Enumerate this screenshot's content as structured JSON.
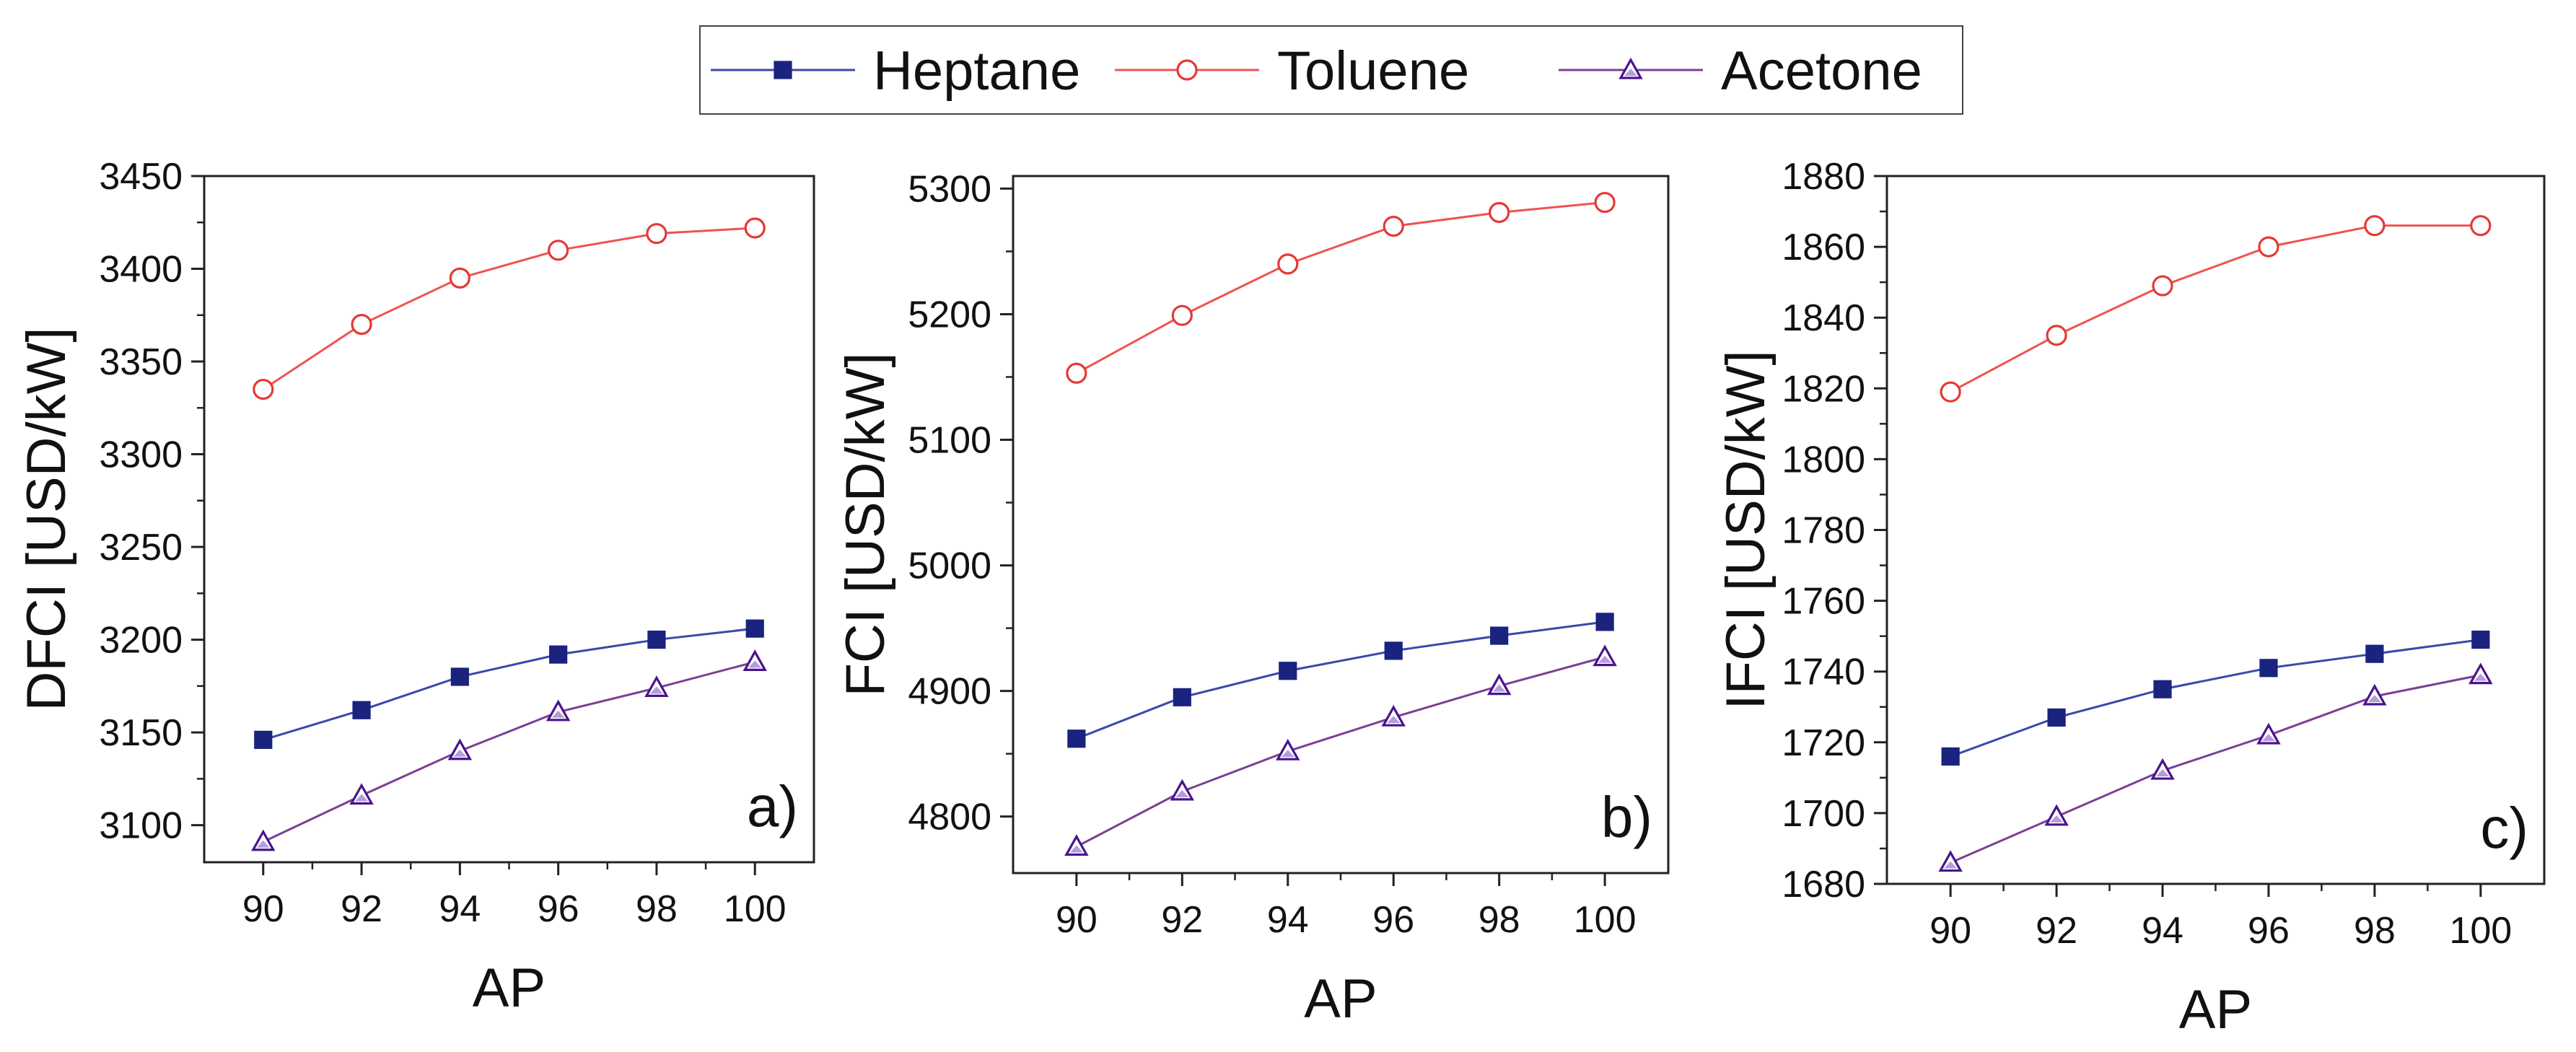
{
  "legend": {
    "placement": "top-center",
    "entries": [
      {
        "name": "Heptane",
        "color": "#1a237e",
        "line_color": "#3949ab",
        "marker": "square",
        "filled": true
      },
      {
        "name": "Toluene",
        "color": "#e53935",
        "line_color": "#ef5350",
        "marker": "circle",
        "filled": false
      },
      {
        "name": "Acetone",
        "color": "#4a148c",
        "line_color": "#7b3f95",
        "marker": "triangle",
        "filled": false
      }
    ]
  },
  "chart_data": [
    {
      "type": "line",
      "panel_label": "a)",
      "title": "",
      "xlabel": "AP",
      "ylabel": "DFCI [USD/kW]",
      "x": [
        90,
        92,
        94,
        96,
        98,
        100
      ],
      "xticks": [
        "90",
        "92",
        "94",
        "96",
        "98",
        "100"
      ],
      "xlim": [
        88.8,
        101.2
      ],
      "yticks": [
        "3100",
        "3150",
        "3200",
        "3250",
        "3300",
        "3350",
        "3400",
        "3450"
      ],
      "ylim": [
        3080,
        3450
      ],
      "series": [
        {
          "name": "Heptane",
          "values": [
            3146,
            3162,
            3180,
            3192,
            3200,
            3206
          ]
        },
        {
          "name": "Toluene",
          "values": [
            3335,
            3370,
            3395,
            3410,
            3419,
            3422
          ]
        },
        {
          "name": "Acetone",
          "values": [
            3091,
            3116,
            3140,
            3161,
            3174,
            3188
          ]
        }
      ]
    },
    {
      "type": "line",
      "panel_label": "b)",
      "title": "",
      "xlabel": "AP",
      "ylabel": "FCI [USD/kW]",
      "x": [
        90,
        92,
        94,
        96,
        98,
        100
      ],
      "xticks": [
        "90",
        "92",
        "94",
        "96",
        "98",
        "100"
      ],
      "xlim": [
        88.8,
        101.2
      ],
      "yticks": [
        "4800",
        "4900",
        "5000",
        "5100",
        "5200",
        "5300"
      ],
      "ylim": [
        4755,
        5310
      ],
      "series": [
        {
          "name": "Heptane",
          "values": [
            4862,
            4895,
            4916,
            4932,
            4944,
            4955
          ]
        },
        {
          "name": "Toluene",
          "values": [
            5153,
            5199,
            5240,
            5270,
            5281,
            5289
          ]
        },
        {
          "name": "Acetone",
          "values": [
            4776,
            4820,
            4852,
            4879,
            4904,
            4927
          ]
        }
      ]
    },
    {
      "type": "line",
      "panel_label": "c)",
      "title": "",
      "xlabel": "AP",
      "ylabel": "IFCI [USD/kW]",
      "x": [
        90,
        92,
        94,
        96,
        98,
        100
      ],
      "xticks": [
        "90",
        "92",
        "94",
        "96",
        "98",
        "100"
      ],
      "xlim": [
        88.8,
        101.2
      ],
      "yticks": [
        "1680",
        "1700",
        "1720",
        "1740",
        "1760",
        "1780",
        "1800",
        "1820",
        "1840",
        "1860",
        "1880"
      ],
      "ylim": [
        1680,
        1880
      ],
      "series": [
        {
          "name": "Heptane",
          "values": [
            1716,
            1727,
            1735,
            1741,
            1745,
            1749
          ]
        },
        {
          "name": "Toluene",
          "values": [
            1819,
            1835,
            1849,
            1860,
            1866,
            1866
          ]
        },
        {
          "name": "Acetone",
          "values": [
            1686,
            1699,
            1712,
            1722,
            1733,
            1739
          ]
        }
      ]
    }
  ]
}
